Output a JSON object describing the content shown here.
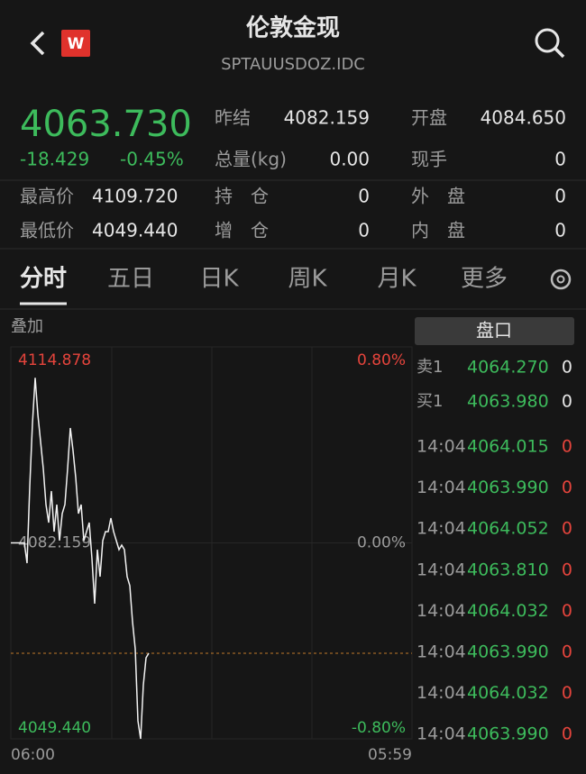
{
  "header": {
    "logo": "W",
    "title": "伦敦金现",
    "subtitle": "SPTAUUSDOZ.IDC"
  },
  "quote": {
    "price": "4063.730",
    "change": "-18.429",
    "change_pct": "-0.45%"
  },
  "stats": [
    {
      "label": "昨结",
      "value": "4082.159"
    },
    {
      "label": "开盘",
      "value": "4084.650"
    },
    {
      "label": "总量(kg)",
      "value": "0.00"
    },
    {
      "label": "现手",
      "value": "0"
    },
    {
      "label": "最高价",
      "value": "4109.720"
    },
    {
      "label": "持　仓",
      "value": "0"
    },
    {
      "label": "外　盘",
      "value": "0"
    },
    {
      "label": "最低价",
      "value": "4049.440"
    },
    {
      "label": "增　仓",
      "value": "0"
    },
    {
      "label": "内　盘",
      "value": "0"
    }
  ],
  "tabs": [
    "分时",
    "五日",
    "日K",
    "周K",
    "月K",
    "更多"
  ],
  "chart": {
    "type": "line",
    "overlay": "叠加",
    "color": "#f2f2f2",
    "ylim": [
      4049.44,
      4114.878
    ],
    "yticks": [
      {
        "value": 4049.44,
        "label": "4049.440"
      },
      4082.159,
      4114.878
    ],
    "y2lim": [
      -0.8,
      0.8
    ],
    "y2ticks": [
      {
        "value": -0.8,
        "label": "-0.80%"
      },
      {
        "value": 0,
        "label": "0.00%"
      },
      {
        "value": 0.8,
        "label": "0.80%"
      }
    ],
    "xlabels": [
      "06:00",
      "05:59"
    ],
    "last": 4063.73,
    "values": [
      4082.16,
      4082.16,
      4082.16,
      4082.16,
      4082.16,
      4082.16,
      4078.78,
      4091.56,
      4102.09,
      4109.72,
      4103.6,
      4099.08,
      4094.57,
      4088.55,
      4085.55,
      4090.81,
      4084.04,
      4088.55,
      4082.54,
      4087.05,
      4088.55,
      4094.57,
      4101.34,
      4097.58,
      4093.07,
      4087.05,
      4088.55,
      4082.54,
      4084.04,
      4085.55,
      4079.53,
      4072.01,
      4081.03,
      4076.52,
      4082.54,
      4084.04,
      4084.04,
      4086.3,
      4084.04,
      4082.54,
      4081.03,
      4081.79,
      4081.03,
      4076.52,
      4075.02,
      4069.0,
      4064.49,
      4052.45,
      4049.44,
      4058.47,
      4062.98,
      4063.73
    ]
  },
  "book": {
    "title": "盘口",
    "levels": [
      {
        "label": "卖1",
        "price": "4064.270",
        "volume": "0"
      },
      {
        "label": "买1",
        "price": "4063.980",
        "volume": "0"
      }
    ],
    "trades": [
      {
        "time": "14:04",
        "price": "4064.015",
        "volume": "0"
      },
      {
        "time": "14:04",
        "price": "4063.990",
        "volume": "0"
      },
      {
        "time": "14:04",
        "price": "4064.052",
        "volume": "0"
      },
      {
        "time": "14:04",
        "price": "4063.810",
        "volume": "0"
      },
      {
        "time": "14:04",
        "price": "4064.032",
        "volume": "0"
      },
      {
        "time": "14:04",
        "price": "4063.990",
        "volume": "0"
      },
      {
        "time": "14:04",
        "price": "4064.032",
        "volume": "0"
      },
      {
        "time": "14:04",
        "price": "4063.990",
        "volume": "0"
      }
    ]
  }
}
